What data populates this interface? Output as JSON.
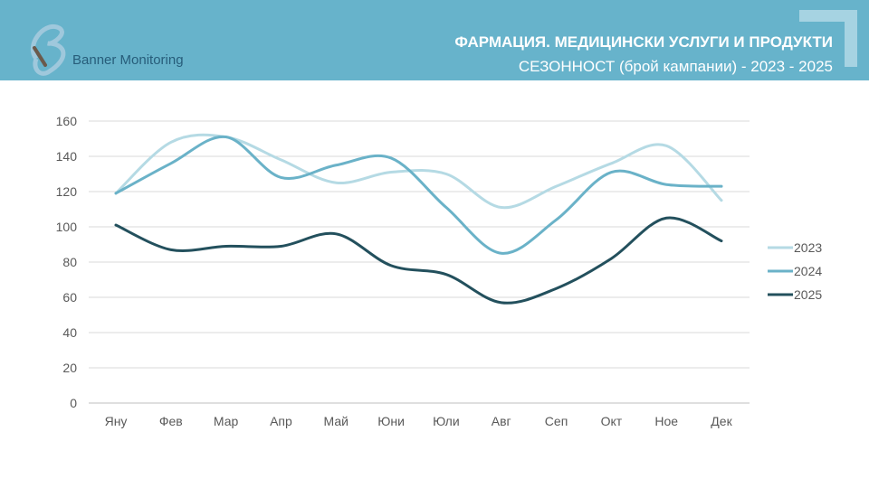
{
  "header": {
    "logo_text": "Banner Monitoring",
    "title": "ФАРМАЦИЯ. МЕДИЦИНСКИ УСЛУГИ И ПРОДУКТИ",
    "subtitle": "СЕЗОННОСТ (брой кампании) - 2023 - 2025"
  },
  "chart_data": {
    "type": "line",
    "categories": [
      "Яну",
      "Фев",
      "Мар",
      "Апр",
      "Май",
      "Юни",
      "Юли",
      "Авг",
      "Сеп",
      "Окт",
      "Ное",
      "Дек"
    ],
    "yticks": [
      0,
      20,
      40,
      60,
      80,
      100,
      120,
      140,
      160
    ],
    "ylim": [
      0,
      160
    ],
    "grid": true,
    "legend": "right",
    "series": [
      {
        "name": "2023",
        "color": "#b5dae4",
        "values": [
          119,
          148,
          151,
          138,
          125,
          131,
          130,
          111,
          123,
          136,
          146,
          115
        ]
      },
      {
        "name": "2024",
        "color": "#6ab2c8",
        "values": [
          119,
          136,
          151,
          128,
          135,
          139,
          111,
          85,
          104,
          131,
          124,
          123
        ]
      },
      {
        "name": "2025",
        "color": "#23505d",
        "values": [
          101,
          87,
          89,
          89,
          96,
          78,
          73,
          57,
          65,
          82,
          105,
          92
        ]
      }
    ]
  }
}
